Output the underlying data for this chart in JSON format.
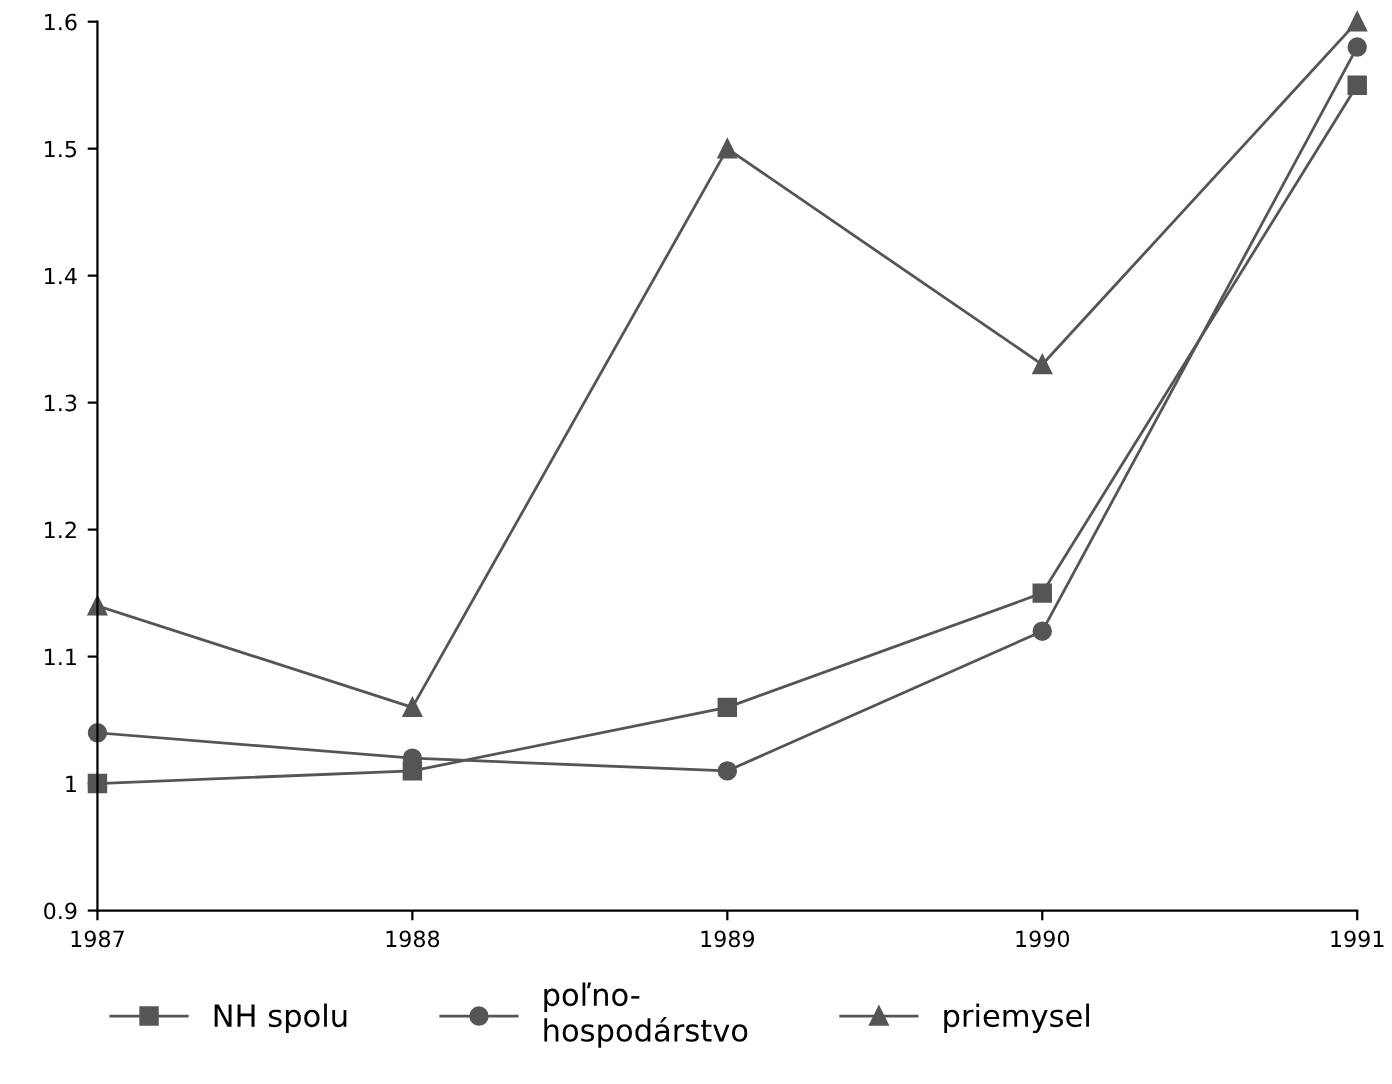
{
  "chart_data": {
    "type": "line",
    "x": [
      1987,
      1988,
      1989,
      1990,
      1991
    ],
    "xlim": [
      1987,
      1991
    ],
    "xticks": [
      1987,
      1988,
      1989,
      1990,
      1991
    ],
    "ylim": [
      0.9,
      1.6
    ],
    "yticks": [
      0.9,
      1,
      1.1,
      1.2,
      1.3,
      1.4,
      1.5,
      1.6
    ],
    "grid": false,
    "legend": "bottom",
    "line_style": "solid",
    "series": [
      {
        "name": "NH spolu",
        "color": "#555555",
        "marker": "square",
        "values": [
          1.0,
          1.01,
          1.06,
          1.15,
          1.55
        ]
      },
      {
        "name": "poľno-\nhospodárstvo",
        "color": "#555555",
        "marker": "circle",
        "values": [
          1.04,
          1.02,
          1.01,
          1.12,
          1.58
        ]
      },
      {
        "name": "priemysel",
        "color": "#555555",
        "marker": "triangle",
        "values": [
          1.14,
          1.06,
          1.5,
          1.33,
          1.6
        ]
      }
    ]
  }
}
